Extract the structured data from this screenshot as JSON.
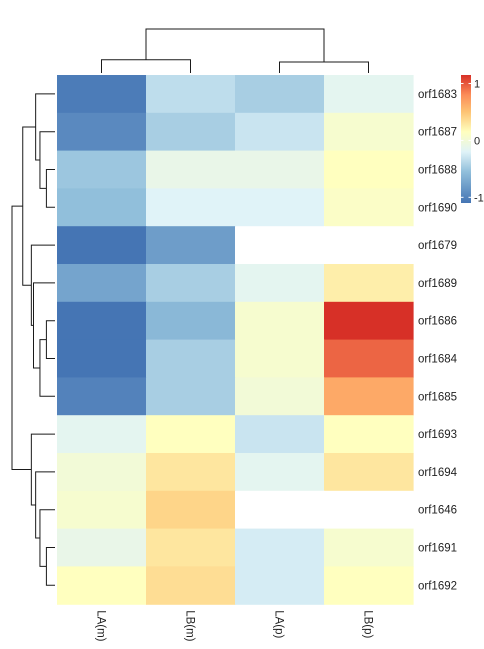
{
  "chart_data": {
    "type": "heatmap",
    "title": "",
    "xlabel": "",
    "ylabel": "",
    "columns": [
      "LA(m)",
      "LB(m)",
      "LA(p)",
      "LB(p)"
    ],
    "rows": [
      "orf1683",
      "orf1687",
      "orf1688",
      "orf1690",
      "orf1679",
      "orf1689",
      "orf1686",
      "orf1684",
      "orf1685",
      "orf1693",
      "orf1694",
      "orf1646",
      "orf1691",
      "orf1692"
    ],
    "values": [
      [
        -1.05,
        -0.35,
        -0.45,
        -0.15
      ],
      [
        -0.95,
        -0.45,
        -0.3,
        0.05
      ],
      [
        -0.5,
        -0.1,
        -0.1,
        0.15
      ],
      [
        -0.55,
        -0.2,
        -0.2,
        0.1
      ],
      [
        -1.1,
        -0.8,
        null,
        null
      ],
      [
        -0.75,
        -0.45,
        -0.15,
        0.25
      ],
      [
        -1.1,
        -0.6,
        0.05,
        1.15
      ],
      [
        -1.1,
        -0.45,
        0.05,
        0.95
      ],
      [
        -1.0,
        -0.45,
        0.0,
        0.65
      ],
      [
        -0.15,
        0.15,
        -0.3,
        0.15
      ],
      [
        0.0,
        0.3,
        -0.15,
        0.3
      ],
      [
        0.05,
        0.4,
        null,
        null
      ],
      [
        -0.1,
        0.3,
        -0.25,
        0.05
      ],
      [
        0.15,
        0.35,
        -0.25,
        0.15
      ]
    ],
    "color_scale": {
      "min": -1.1,
      "max": 1.15,
      "stops": [
        {
          "value": -1.1,
          "color": "#4575b4"
        },
        {
          "value": -0.55,
          "color": "#91bfdb"
        },
        {
          "value": -0.2,
          "color": "#e0f3f8"
        },
        {
          "value": 0.15,
          "color": "#ffffbf"
        },
        {
          "value": 0.5,
          "color": "#fdc474"
        },
        {
          "value": 0.8,
          "color": "#fc8d59"
        },
        {
          "value": 1.15,
          "color": "#d73027"
        }
      ],
      "missing_color": "#ffffff"
    },
    "legend": {
      "position": "top-right",
      "ticks": [
        {
          "value": 1,
          "label": "1"
        },
        {
          "value": 0,
          "label": "0"
        },
        {
          "value": -1,
          "label": "-1"
        }
      ]
    },
    "row_dendrogram": {
      "merges": [
        [
          -3,
          -4,
          0.2
        ],
        [
          -2,
          1,
          0.35
        ],
        [
          -1,
          2,
          0.45
        ],
        [
          -7,
          -8,
          0.2
        ],
        [
          -9,
          4,
          0.35
        ],
        [
          -6,
          5,
          0.5
        ],
        [
          -5,
          6,
          0.55
        ],
        [
          3,
          7,
          0.75
        ],
        [
          -13,
          -14,
          0.2
        ],
        [
          -12,
          9,
          0.35
        ],
        [
          -11,
          10,
          0.45
        ],
        [
          -10,
          11,
          0.55
        ],
        [
          8,
          12,
          1.0
        ]
      ]
    },
    "column_dendrogram": {
      "merges": [
        [
          -1,
          -2,
          0.3
        ],
        [
          -3,
          -4,
          0.25
        ],
        [
          1,
          2,
          1.0
        ]
      ]
    }
  }
}
